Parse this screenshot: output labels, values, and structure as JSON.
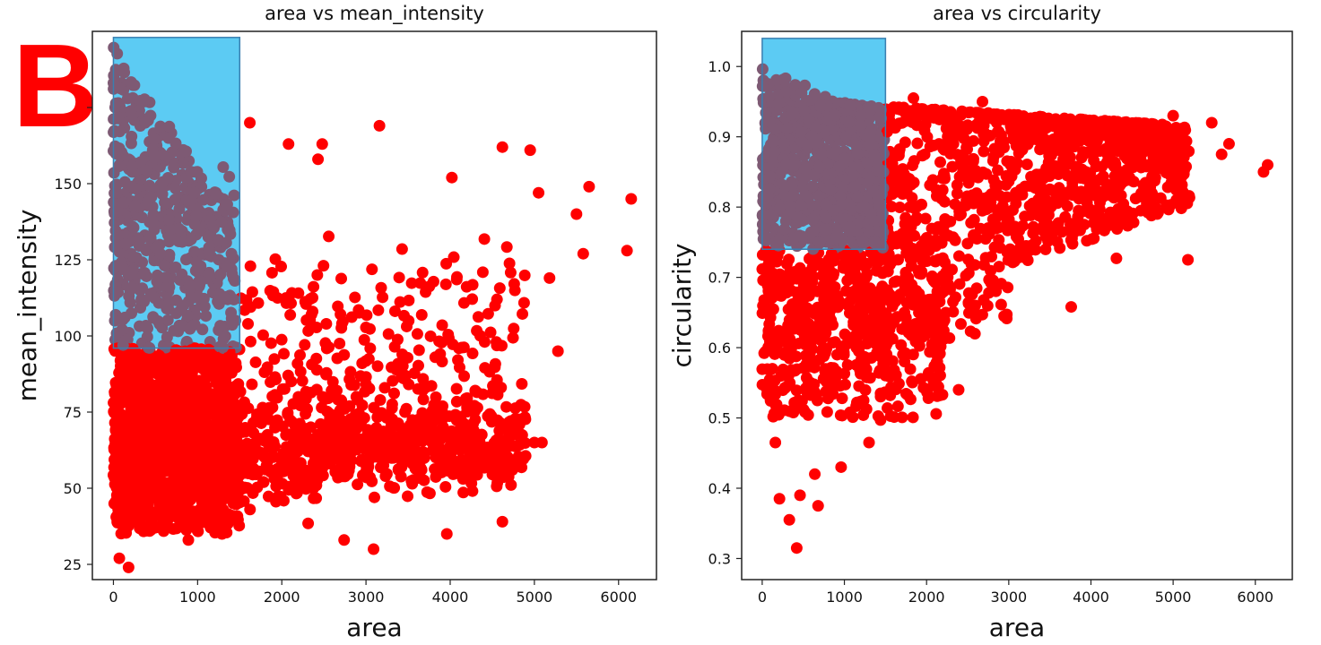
{
  "panel_label": "B",
  "colors": {
    "points": "#ff0000",
    "highlight_fill": "#5ccbf3",
    "highlight_stroke": "#3a7fb0",
    "overlap": "#7e5a74"
  },
  "chart_data": [
    {
      "type": "scatter",
      "title": "area vs mean_intensity",
      "xlabel": "area",
      "ylabel": "mean_intensity",
      "xlim": [
        -250,
        6450
      ],
      "ylim": [
        20,
        200
      ],
      "xticks": [
        0,
        1000,
        2000,
        3000,
        4000,
        5000,
        6000
      ],
      "yticks": [
        25,
        50,
        75,
        100,
        125,
        150,
        175
      ],
      "ytick_labels": [
        "25",
        "50",
        "75",
        "100",
        "125",
        "150",
        ""
      ],
      "highlight_region": {
        "x": [
          0,
          1500
        ],
        "y": [
          96,
          198
        ]
      },
      "cloud_description": "dense red cloud, area 0-5000 and mean_intensity 30-160; high-intensity points concentrated at small area",
      "outlier_points": [
        {
          "x": 6150,
          "y": 145
        },
        {
          "x": 6100,
          "y": 128
        },
        {
          "x": 5650,
          "y": 149
        },
        {
          "x": 5500,
          "y": 140
        },
        {
          "x": 5580,
          "y": 127
        },
        {
          "x": 5180,
          "y": 119
        },
        {
          "x": 5050,
          "y": 147
        },
        {
          "x": 4950,
          "y": 161
        },
        {
          "x": 4620,
          "y": 162
        },
        {
          "x": 5280,
          "y": 95
        },
        {
          "x": 5000,
          "y": 65
        },
        {
          "x": 5090,
          "y": 65
        },
        {
          "x": 3160,
          "y": 169
        },
        {
          "x": 2080,
          "y": 163
        },
        {
          "x": 2480,
          "y": 163
        },
        {
          "x": 1620,
          "y": 170
        },
        {
          "x": 2430,
          "y": 158
        },
        {
          "x": 4020,
          "y": 152
        },
        {
          "x": 3090,
          "y": 30
        },
        {
          "x": 3960,
          "y": 35
        },
        {
          "x": 4620,
          "y": 39
        },
        {
          "x": 1290,
          "y": 35
        },
        {
          "x": 2740,
          "y": 33
        },
        {
          "x": 890,
          "y": 33
        },
        {
          "x": 180,
          "y": 24
        },
        {
          "x": 70,
          "y": 27
        }
      ]
    },
    {
      "type": "scatter",
      "title": "area vs circularity",
      "xlabel": "area",
      "ylabel": "circularity",
      "xlim": [
        -250,
        6450
      ],
      "ylim": [
        0.27,
        1.05
      ],
      "xticks": [
        0,
        1000,
        2000,
        3000,
        4000,
        5000,
        6000
      ],
      "yticks": [
        0.3,
        0.4,
        0.5,
        0.6,
        0.7,
        0.8,
        0.9,
        1.0
      ],
      "ytick_labels": [
        "0.3",
        "0.4",
        "0.5",
        "0.6",
        "0.7",
        "0.8",
        "0.9",
        "1.0"
      ],
      "highlight_region": {
        "x": [
          0,
          1500
        ],
        "y": [
          0.74,
          1.04
        ]
      },
      "cloud_description": "dense red cloud spanning circularity 0.5-0.95 and area 0-5500; upper bound near 1.0 at small area",
      "outlier_points": [
        {
          "x": 420,
          "y": 0.315
        },
        {
          "x": 330,
          "y": 0.355
        },
        {
          "x": 680,
          "y": 0.375
        },
        {
          "x": 210,
          "y": 0.385
        },
        {
          "x": 460,
          "y": 0.39
        },
        {
          "x": 960,
          "y": 0.43
        },
        {
          "x": 640,
          "y": 0.42
        },
        {
          "x": 1300,
          "y": 0.465
        },
        {
          "x": 160,
          "y": 0.465
        },
        {
          "x": 1440,
          "y": 0.497
        },
        {
          "x": 2390,
          "y": 0.54
        },
        {
          "x": 5180,
          "y": 0.725
        },
        {
          "x": 4310,
          "y": 0.727
        },
        {
          "x": 3760,
          "y": 0.658
        },
        {
          "x": 6100,
          "y": 0.85
        },
        {
          "x": 6150,
          "y": 0.86
        },
        {
          "x": 5680,
          "y": 0.89
        },
        {
          "x": 5590,
          "y": 0.875
        },
        {
          "x": 5470,
          "y": 0.92
        },
        {
          "x": 1840,
          "y": 0.955
        },
        {
          "x": 2680,
          "y": 0.95
        },
        {
          "x": 5000,
          "y": 0.93
        }
      ]
    }
  ]
}
